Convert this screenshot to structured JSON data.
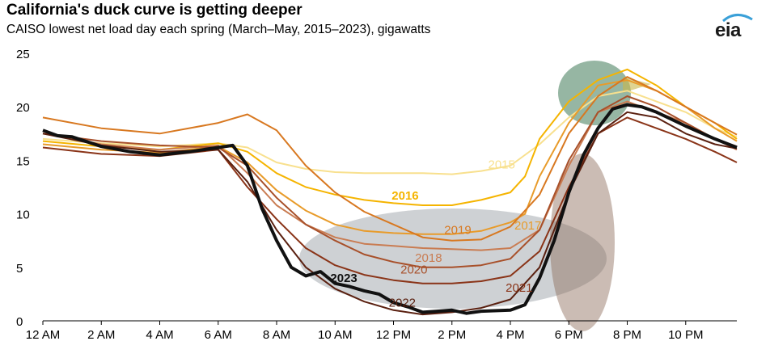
{
  "header": {
    "title": "California's duck curve is getting deeper",
    "subtitle": "CAISO lowest net load day each spring (March–May, 2015–2023), gigawatts"
  },
  "logo": {
    "text": "eia",
    "accent_color": "#3aa0d8"
  },
  "colors": {
    "2015": "#f8e08e",
    "2016": "#f5b400",
    "2017": "#e89b2a",
    "2018": "#c97c52",
    "2019": "#d87820",
    "2020": "#a8502a",
    "2021": "#8a3418",
    "2022": "#5a2010",
    "2023": "#111111"
  },
  "chart_data": {
    "type": "line",
    "title": "California's duck curve is getting deeper",
    "ylabel": "gigawatts",
    "xlim": [
      0,
      23.75
    ],
    "ylim": [
      0,
      25
    ],
    "yticks": [
      0,
      5,
      10,
      15,
      20,
      25
    ],
    "xticks": [
      {
        "value": 0,
        "label": "12 AM"
      },
      {
        "value": 2,
        "label": "2 AM"
      },
      {
        "value": 4,
        "label": "4 AM"
      },
      {
        "value": 6,
        "label": "6 AM"
      },
      {
        "value": 8,
        "label": "8 AM"
      },
      {
        "value": 10,
        "label": "10 AM"
      },
      {
        "value": 12,
        "label": "12 PM"
      },
      {
        "value": 14,
        "label": "2 PM"
      },
      {
        "value": 16,
        "label": "4 PM"
      },
      {
        "value": 18,
        "label": "6 PM"
      },
      {
        "value": 20,
        "label": "8 PM"
      },
      {
        "value": 22,
        "label": "10 PM"
      }
    ],
    "series": [
      {
        "name": "2015",
        "label_x": 15.7,
        "label_y": 14.6,
        "points": [
          [
            0,
            17.0
          ],
          [
            2,
            16.6
          ],
          [
            4,
            16.3
          ],
          [
            6,
            16.6
          ],
          [
            7,
            16.2
          ],
          [
            8,
            14.8
          ],
          [
            9,
            14.2
          ],
          [
            10,
            13.9
          ],
          [
            11,
            13.8
          ],
          [
            12,
            13.8
          ],
          [
            13,
            13.8
          ],
          [
            14,
            13.7
          ],
          [
            15,
            14.0
          ],
          [
            16,
            14.5
          ],
          [
            17,
            16.5
          ],
          [
            18,
            19.0
          ],
          [
            19,
            21.0
          ],
          [
            20,
            21.5
          ],
          [
            21,
            20.5
          ],
          [
            22,
            19.5
          ],
          [
            23,
            18.0
          ],
          [
            23.75,
            17.2
          ]
        ]
      },
      {
        "name": "2016",
        "label_x": 12.4,
        "label_y": 11.7,
        "points": [
          [
            0,
            16.8
          ],
          [
            2,
            16.3
          ],
          [
            4,
            16.0
          ],
          [
            6,
            16.6
          ],
          [
            7,
            15.8
          ],
          [
            8,
            13.8
          ],
          [
            9,
            12.5
          ],
          [
            10,
            11.8
          ],
          [
            11,
            11.3
          ],
          [
            12,
            11.0
          ],
          [
            13,
            10.8
          ],
          [
            14,
            10.8
          ],
          [
            15,
            11.3
          ],
          [
            16,
            12.0
          ],
          [
            16.5,
            13.5
          ],
          [
            17,
            17.0
          ],
          [
            18,
            20.5
          ],
          [
            19,
            22.5
          ],
          [
            20,
            23.5
          ],
          [
            21,
            22.0
          ],
          [
            22,
            20.0
          ],
          [
            23,
            18.5
          ],
          [
            23.75,
            17.0
          ]
        ]
      },
      {
        "name": "2017",
        "label_x": 16.6,
        "label_y": 8.9,
        "points": [
          [
            0,
            16.5
          ],
          [
            2,
            16.0
          ],
          [
            4,
            15.7
          ],
          [
            6,
            16.3
          ],
          [
            7,
            14.8
          ],
          [
            8,
            12.2
          ],
          [
            9,
            10.3
          ],
          [
            10,
            9.0
          ],
          [
            11,
            8.4
          ],
          [
            12,
            8.2
          ],
          [
            13,
            8.1
          ],
          [
            14,
            8.1
          ],
          [
            15,
            8.4
          ],
          [
            16,
            9.2
          ],
          [
            16.5,
            10.0
          ],
          [
            17,
            13.5
          ],
          [
            18,
            18.5
          ],
          [
            19,
            22.0
          ],
          [
            20,
            22.5
          ],
          [
            21,
            21.5
          ],
          [
            22,
            20.0
          ],
          [
            23,
            18.0
          ],
          [
            23.75,
            16.8
          ]
        ]
      },
      {
        "name": "2018",
        "label_x": 13.2,
        "label_y": 5.9,
        "points": [
          [
            0,
            17.5
          ],
          [
            2,
            16.5
          ],
          [
            4,
            16.0
          ],
          [
            6,
            16.4
          ],
          [
            7,
            13.8
          ],
          [
            8,
            10.8
          ],
          [
            9,
            9.0
          ],
          [
            10,
            7.8
          ],
          [
            11,
            7.2
          ],
          [
            12,
            7.0
          ],
          [
            13,
            6.8
          ],
          [
            14,
            6.7
          ],
          [
            15,
            6.6
          ],
          [
            16,
            6.8
          ],
          [
            17,
            8.5
          ],
          [
            18,
            14.5
          ],
          [
            19,
            19.5
          ],
          [
            20,
            20.5
          ],
          [
            21,
            19.5
          ],
          [
            22,
            18.5
          ],
          [
            23,
            17.0
          ],
          [
            23.75,
            16.0
          ]
        ]
      },
      {
        "name": "2019",
        "label_x": 14.2,
        "label_y": 8.5,
        "points": [
          [
            0,
            19.0
          ],
          [
            2,
            18.0
          ],
          [
            4,
            17.5
          ],
          [
            6,
            18.5
          ],
          [
            7,
            19.3
          ],
          [
            8,
            17.8
          ],
          [
            9,
            14.5
          ],
          [
            10,
            12.0
          ],
          [
            11,
            10.2
          ],
          [
            12,
            9.0
          ],
          [
            13,
            7.8
          ],
          [
            14,
            7.5
          ],
          [
            15,
            7.6
          ],
          [
            16,
            8.8
          ],
          [
            17,
            11.8
          ],
          [
            18,
            17.5
          ],
          [
            19,
            21.0
          ],
          [
            20,
            22.8
          ],
          [
            21,
            21.5
          ],
          [
            22,
            20.0
          ],
          [
            23,
            18.5
          ],
          [
            23.75,
            17.4
          ]
        ]
      },
      {
        "name": "2020",
        "label_x": 12.7,
        "label_y": 4.8,
        "points": [
          [
            0,
            17.5
          ],
          [
            2,
            16.8
          ],
          [
            4,
            16.4
          ],
          [
            6,
            16.2
          ],
          [
            7,
            14.5
          ],
          [
            8,
            11.5
          ],
          [
            9,
            9.0
          ],
          [
            10,
            7.5
          ],
          [
            11,
            6.2
          ],
          [
            12,
            5.5
          ],
          [
            13,
            5.0
          ],
          [
            14,
            5.0
          ],
          [
            15,
            5.2
          ],
          [
            16,
            5.8
          ],
          [
            17,
            8.5
          ],
          [
            18,
            15.0
          ],
          [
            19,
            19.5
          ],
          [
            20,
            21.0
          ],
          [
            21,
            20.0
          ],
          [
            22,
            18.5
          ],
          [
            23,
            17.0
          ],
          [
            23.75,
            16.3
          ]
        ]
      },
      {
        "name": "2021",
        "label_x": 16.3,
        "label_y": 3.1,
        "points": [
          [
            0,
            16.2
          ],
          [
            2,
            15.6
          ],
          [
            4,
            15.4
          ],
          [
            6,
            16.0
          ],
          [
            7,
            12.5
          ],
          [
            8,
            9.5
          ],
          [
            9,
            6.8
          ],
          [
            10,
            5.2
          ],
          [
            11,
            4.3
          ],
          [
            12,
            3.8
          ],
          [
            13,
            3.5
          ],
          [
            14,
            3.5
          ],
          [
            15,
            3.7
          ],
          [
            16,
            4.2
          ],
          [
            17,
            6.5
          ],
          [
            18,
            12.5
          ],
          [
            19,
            17.5
          ],
          [
            20,
            19.0
          ],
          [
            21,
            18.0
          ],
          [
            22,
            17.0
          ],
          [
            23,
            15.8
          ],
          [
            23.75,
            14.8
          ]
        ]
      },
      {
        "name": "2022",
        "label_x": 12.3,
        "label_y": 1.7,
        "points": [
          [
            0,
            17.5
          ],
          [
            2,
            16.4
          ],
          [
            4,
            15.8
          ],
          [
            6,
            16.0
          ],
          [
            7,
            13.0
          ],
          [
            8,
            8.5
          ],
          [
            9,
            5.0
          ],
          [
            10,
            3.0
          ],
          [
            11,
            1.8
          ],
          [
            12,
            1.0
          ],
          [
            13,
            0.6
          ],
          [
            14,
            0.8
          ],
          [
            15,
            1.2
          ],
          [
            16,
            2.0
          ],
          [
            17,
            5.0
          ],
          [
            18,
            12.0
          ],
          [
            19,
            17.5
          ],
          [
            20,
            19.5
          ],
          [
            21,
            19.0
          ],
          [
            22,
            17.5
          ],
          [
            23,
            16.5
          ],
          [
            23.75,
            16.1
          ]
        ]
      },
      {
        "name": "2023",
        "label_x": 10.3,
        "label_y": 4.0,
        "points": [
          [
            0,
            17.8
          ],
          [
            0.5,
            17.3
          ],
          [
            1,
            17.2
          ],
          [
            2,
            16.3
          ],
          [
            3,
            15.8
          ],
          [
            4,
            15.5
          ],
          [
            5,
            15.8
          ],
          [
            6,
            16.2
          ],
          [
            6.5,
            16.4
          ],
          [
            7,
            14.5
          ],
          [
            7.5,
            10.5
          ],
          [
            8,
            7.5
          ],
          [
            8.5,
            5.0
          ],
          [
            9,
            4.2
          ],
          [
            9.5,
            4.6
          ],
          [
            10,
            3.5
          ],
          [
            10.5,
            3.2
          ],
          [
            11,
            2.8
          ],
          [
            11.5,
            2.5
          ],
          [
            12,
            1.7
          ],
          [
            12.5,
            1.3
          ],
          [
            13,
            0.8
          ],
          [
            13.5,
            0.9
          ],
          [
            14,
            1.0
          ],
          [
            14.5,
            0.7
          ],
          [
            15,
            0.9
          ],
          [
            16,
            1.0
          ],
          [
            16.5,
            1.5
          ],
          [
            17,
            4.0
          ],
          [
            17.5,
            7.5
          ],
          [
            18,
            12.0
          ],
          [
            18.5,
            15.5
          ],
          [
            19,
            18.0
          ],
          [
            19.5,
            19.8
          ],
          [
            20,
            20.2
          ],
          [
            20.5,
            20.0
          ],
          [
            21,
            19.5
          ],
          [
            22,
            18.2
          ],
          [
            23,
            17.0
          ],
          [
            23.75,
            16.2
          ]
        ]
      }
    ]
  }
}
